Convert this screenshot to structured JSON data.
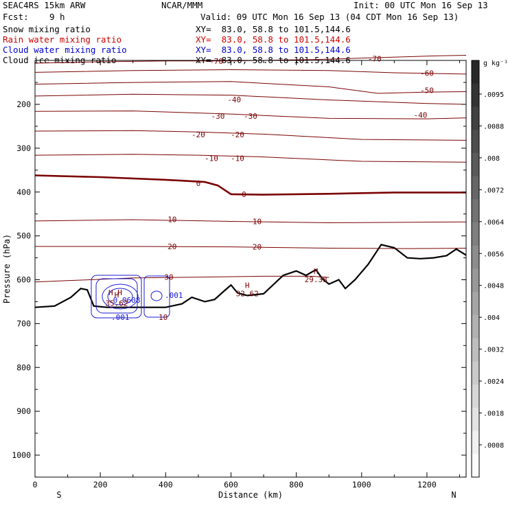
{
  "header": {
    "model": "SEAC4RS 15km ARW",
    "center": "NCAR/MMM",
    "init": "Init: 00 UTC Mon 16 Sep 13",
    "fcst_label": "Fcst:",
    "fcst_value": "9 h",
    "valid": "Valid: 09 UTC Mon 16 Sep 13 (04 CDT Mon 16 Sep 13)"
  },
  "fields": [
    {
      "name": "Snow mixing ratio",
      "xy": "XY=  83.0, 58.8 to 101.5,144.6",
      "color": "#000000"
    },
    {
      "name": "Rain water mixing ratio",
      "xy": "XY=  83.0, 58.8 to 101.5,144.6",
      "color": "#cc0000"
    },
    {
      "name": "Cloud water mixing ratio",
      "xy": "XY=  83.0, 58.8 to 101.5,144.6",
      "color": "#0000cc"
    },
    {
      "name": "Cloud ice mixing ratio",
      "xy": "XY=  83.0, 58.8 to 101.5,144.6",
      "color": "#000000"
    }
  ],
  "chart_data": {
    "type": "cross-section",
    "xlabel": "Distance (km)",
    "ylabel": "Pressure (hPa)",
    "xlim": [
      0,
      1320
    ],
    "ylim": [
      1050,
      100
    ],
    "x_ticks": [
      0,
      200,
      400,
      600,
      800,
      1000,
      1200
    ],
    "y_ticks": [
      200,
      300,
      400,
      500,
      600,
      700,
      800,
      900,
      1000
    ],
    "left_end_label": "S",
    "right_end_label": "N",
    "temperature_contours": [
      {
        "level": -70,
        "points": [
          [
            0,
            106
          ],
          [
            200,
            103
          ],
          [
            400,
            101
          ],
          [
            600,
            101
          ],
          [
            900,
            97
          ],
          [
            1200,
            90
          ],
          [
            1320,
            88
          ]
        ],
        "labels": [
          {
            "text": "-70",
            "x": 555,
            "p": 101
          },
          {
            "text": "-70",
            "x": 1040,
            "p": 96
          }
        ]
      },
      {
        "level": -60,
        "points": [
          [
            0,
            127
          ],
          [
            300,
            123
          ],
          [
            600,
            121
          ],
          [
            900,
            123
          ],
          [
            1100,
            128
          ],
          [
            1320,
            131
          ]
        ],
        "labels": [
          {
            "text": "-60",
            "x": 1200,
            "p": 129
          }
        ]
      },
      {
        "level": -50,
        "points": [
          [
            0,
            154
          ],
          [
            300,
            150
          ],
          [
            600,
            148
          ],
          [
            900,
            160
          ],
          [
            1050,
            175
          ],
          [
            1200,
            172
          ],
          [
            1320,
            171
          ]
        ],
        "labels": [
          {
            "text": "-50",
            "x": 1200,
            "p": 168
          }
        ]
      },
      {
        "level": -40,
        "points": [
          [
            0,
            181
          ],
          [
            300,
            177
          ],
          [
            600,
            179
          ],
          [
            900,
            190
          ],
          [
            1200,
            198
          ],
          [
            1320,
            200
          ]
        ],
        "labels": [
          {
            "text": "-40",
            "x": 610,
            "p": 189
          },
          {
            "text": "-40",
            "x": 1180,
            "p": 224
          }
        ]
      },
      {
        "level": -30,
        "points": [
          [
            0,
            216
          ],
          [
            300,
            215
          ],
          [
            600,
            222
          ],
          [
            900,
            232
          ],
          [
            1200,
            233
          ],
          [
            1320,
            231
          ]
        ],
        "labels": [
          {
            "text": "-30",
            "x": 560,
            "p": 227
          },
          {
            "text": "-30",
            "x": 660,
            "p": 227
          }
        ]
      },
      {
        "level": -20,
        "points": [
          [
            0,
            261
          ],
          [
            300,
            260
          ],
          [
            500,
            263
          ],
          [
            700,
            268
          ],
          [
            1000,
            280
          ],
          [
            1320,
            282
          ]
        ],
        "labels": [
          {
            "text": "-20",
            "x": 500,
            "p": 269
          },
          {
            "text": "-20",
            "x": 620,
            "p": 269
          }
        ]
      },
      {
        "level": -10,
        "points": [
          [
            0,
            316
          ],
          [
            300,
            314
          ],
          [
            500,
            316
          ],
          [
            700,
            320
          ],
          [
            1000,
            330
          ],
          [
            1320,
            332
          ]
        ],
        "labels": [
          {
            "text": "-10",
            "x": 540,
            "p": 323
          },
          {
            "text": "-10",
            "x": 620,
            "p": 323
          }
        ]
      },
      {
        "level": 0,
        "bold": true,
        "points": [
          [
            0,
            362
          ],
          [
            200,
            366
          ],
          [
            400,
            372
          ],
          [
            520,
            377
          ],
          [
            560,
            385
          ],
          [
            600,
            405
          ],
          [
            700,
            406
          ],
          [
            900,
            404
          ],
          [
            1100,
            401
          ],
          [
            1320,
            401
          ]
        ],
        "labels": [
          {
            "text": "0",
            "x": 500,
            "p": 380
          },
          {
            "text": "0",
            "x": 640,
            "p": 405
          }
        ]
      },
      {
        "level": 10,
        "points": [
          [
            0,
            466
          ],
          [
            300,
            463
          ],
          [
            600,
            467
          ],
          [
            900,
            470
          ],
          [
            1320,
            468
          ]
        ],
        "labels": [
          {
            "text": "10",
            "x": 420,
            "p": 462
          },
          {
            "text": "10",
            "x": 680,
            "p": 467
          }
        ]
      },
      {
        "level": 20,
        "points": [
          [
            0,
            524
          ],
          [
            300,
            524
          ],
          [
            600,
            525
          ],
          [
            900,
            528
          ],
          [
            1150,
            529
          ],
          [
            1320,
            528
          ]
        ],
        "labels": [
          {
            "text": "20",
            "x": 420,
            "p": 524
          },
          {
            "text": "20",
            "x": 680,
            "p": 525
          }
        ]
      },
      {
        "level": 30,
        "points": [
          [
            0,
            605
          ],
          [
            100,
            602
          ],
          [
            300,
            596
          ],
          [
            500,
            594
          ],
          [
            700,
            592
          ],
          [
            850,
            592
          ],
          [
            900,
            595
          ]
        ],
        "labels": [
          {
            "text": "30",
            "x": 410,
            "p": 594
          }
        ]
      }
    ],
    "maxima_labels": [
      {
        "symbol": "H",
        "value": "35.62",
        "x": 250,
        "p": 650
      },
      {
        "symbol": "H",
        "value": "32.62",
        "x": 650,
        "p": 628
      },
      {
        "symbol": "H",
        "value": "29.38",
        "x": 860,
        "p": 596
      }
    ],
    "terrain": [
      [
        0,
        663
      ],
      [
        60,
        660
      ],
      [
        110,
        640
      ],
      [
        140,
        620
      ],
      [
        160,
        623
      ],
      [
        180,
        660
      ],
      [
        220,
        663
      ],
      [
        300,
        663
      ],
      [
        400,
        663
      ],
      [
        450,
        655
      ],
      [
        480,
        640
      ],
      [
        520,
        650
      ],
      [
        550,
        645
      ],
      [
        580,
        625
      ],
      [
        600,
        612
      ],
      [
        620,
        630
      ],
      [
        650,
        636
      ],
      [
        700,
        632
      ],
      [
        760,
        590
      ],
      [
        800,
        580
      ],
      [
        830,
        590
      ],
      [
        860,
        577
      ],
      [
        880,
        598
      ],
      [
        900,
        610
      ],
      [
        930,
        600
      ],
      [
        950,
        620
      ],
      [
        980,
        600
      ],
      [
        1020,
        565
      ],
      [
        1060,
        520
      ],
      [
        1100,
        527
      ],
      [
        1140,
        550
      ],
      [
        1180,
        552
      ],
      [
        1220,
        550
      ],
      [
        1260,
        545
      ],
      [
        1290,
        530
      ],
      [
        1320,
        544
      ]
    ],
    "cloud_water_labels": [
      ".001",
      ".001",
      "10"
    ],
    "colorbar_unit": "g kg⁻¹",
    "colorbar_ticks": [
      ".0095",
      ".0088",
      ".008",
      ".0072",
      ".0064",
      ".0056",
      ".0048",
      ".004",
      ".0032",
      ".0024",
      ".0018",
      ".0008"
    ]
  }
}
